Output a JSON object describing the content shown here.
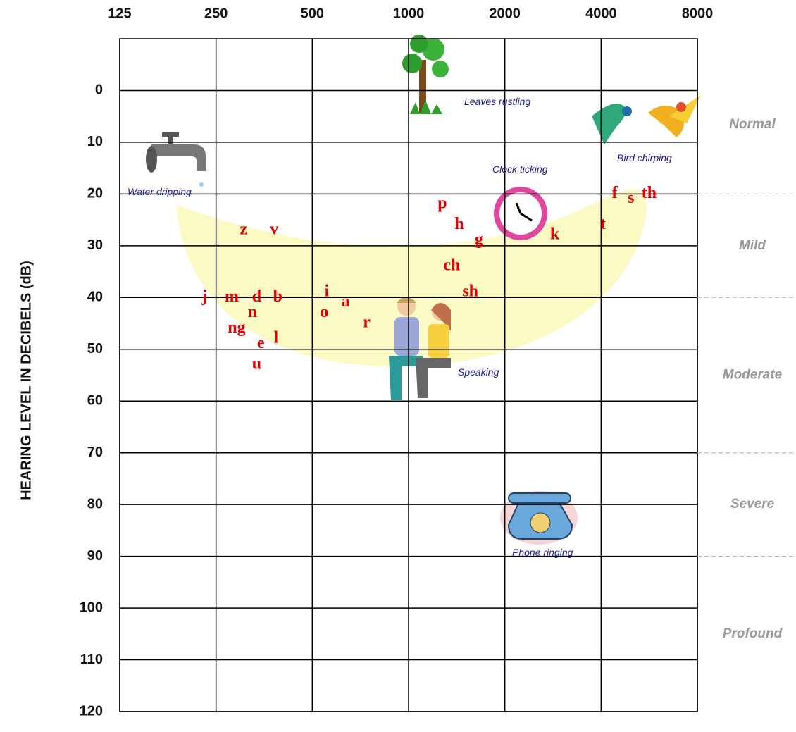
{
  "chart_data": {
    "type": "scatter",
    "y_label": "HEARING LEVEL IN DECIBELS (dB)",
    "x_scale": "log",
    "xlim": [
      125,
      8000
    ],
    "xticks": [
      125,
      250,
      500,
      1000,
      2000,
      4000,
      8000
    ],
    "ylim": [
      -10,
      120
    ],
    "y_reversed": true,
    "yticks": [
      0,
      10,
      20,
      30,
      40,
      50,
      60,
      70,
      80,
      90,
      100,
      110,
      120
    ],
    "grid": true,
    "color": "#e00000",
    "points": [
      {
        "label": "z",
        "x": 305,
        "y": 27
      },
      {
        "label": "v",
        "x": 380,
        "y": 27
      },
      {
        "label": "j",
        "x": 230,
        "y": 40
      },
      {
        "label": "m",
        "x": 280,
        "y": 40
      },
      {
        "label": "d",
        "x": 335,
        "y": 40
      },
      {
        "label": "b",
        "x": 390,
        "y": 40
      },
      {
        "label": "n",
        "x": 325,
        "y": 43
      },
      {
        "label": "ng",
        "x": 290,
        "y": 46
      },
      {
        "label": "e",
        "x": 345,
        "y": 49
      },
      {
        "label": "l",
        "x": 385,
        "y": 48
      },
      {
        "label": "u",
        "x": 335,
        "y": 53
      },
      {
        "label": "i",
        "x": 555,
        "y": 39
      },
      {
        "label": "o",
        "x": 545,
        "y": 43
      },
      {
        "label": "a",
        "x": 635,
        "y": 41
      },
      {
        "label": "r",
        "x": 740,
        "y": 45
      },
      {
        "label": "p",
        "x": 1275,
        "y": 22
      },
      {
        "label": "h",
        "x": 1440,
        "y": 26
      },
      {
        "label": "g",
        "x": 1660,
        "y": 29
      },
      {
        "label": "ch",
        "x": 1365,
        "y": 34
      },
      {
        "label": "sh",
        "x": 1560,
        "y": 39
      },
      {
        "label": "k",
        "x": 2865,
        "y": 28
      },
      {
        "label": "t",
        "x": 4055,
        "y": 26
      },
      {
        "label": "f",
        "x": 4410,
        "y": 20
      },
      {
        "label": "s",
        "x": 4960,
        "y": 21
      },
      {
        "label": "th",
        "x": 5650,
        "y": 20
      }
    ],
    "annotations": [
      "Leaves rustling",
      "Water dripping",
      "Clock ticking",
      "Bird chirping",
      "Speaking",
      "Phone ringing"
    ],
    "bands": [
      {
        "label": "Normal",
        "from": -10,
        "to": 20
      },
      {
        "label": "Mild",
        "from": 20,
        "to": 40
      },
      {
        "label": "Moderate",
        "from": 40,
        "to": 70
      },
      {
        "label": "Severe",
        "from": 70,
        "to": 90
      },
      {
        "label": "Profound",
        "from": 90,
        "to": 120
      }
    ]
  }
}
